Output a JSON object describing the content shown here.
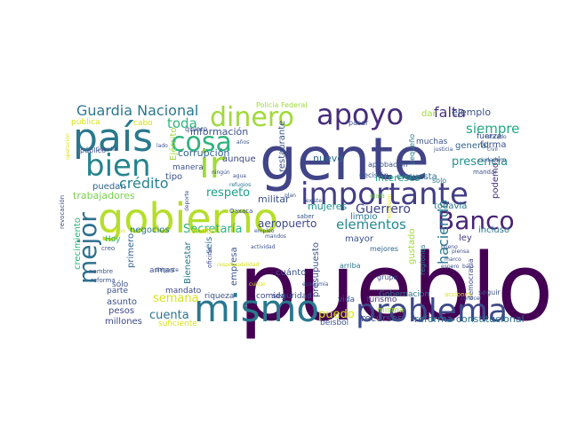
{
  "words": [
    {
      "text": "pueblo",
      "color": "#440154"
    },
    {
      "text": "gente",
      "color": "#414487"
    },
    {
      "text": "gobierno",
      "color": "#b5de2b"
    },
    {
      "text": "importante",
      "color": "#433e85"
    },
    {
      "text": "país",
      "color": "#2a788e"
    },
    {
      "text": "mismo",
      "color": "#2a788e"
    },
    {
      "text": "problema",
      "color": "#3e4989"
    },
    {
      "text": "apoyo",
      "color": "#472d7b"
    },
    {
      "text": "dinero",
      "color": "#a0da39"
    },
    {
      "text": "Banco",
      "color": "#482475"
    },
    {
      "text": "bien",
      "color": "#25848e"
    },
    {
      "text": "cosa",
      "color": "#2fb47c"
    },
    {
      "text": "mejor",
      "color": "#2d708e"
    },
    {
      "text": "ir",
      "color": "#a0da39"
    },
    {
      "text": "Guardia Nacional",
      "color": "#2a788e"
    },
    {
      "text": "falta",
      "color": "#46337e"
    },
    {
      "text": "ejemplo",
      "color": "#3b528b"
    },
    {
      "text": "siempre",
      "color": "#22a884"
    },
    {
      "text": "toda",
      "color": "#2fb47c"
    },
    {
      "text": "presencia",
      "color": "#21918c"
    },
    {
      "text": "haciendo",
      "color": "#2a788e"
    },
    {
      "text": "elementos",
      "color": "#238a8d"
    },
    {
      "text": "Secretaría",
      "color": "#2fb47c"
    },
    {
      "text": "respeto",
      "color": "#1f9e89"
    },
    {
      "text": "crédito",
      "color": "#25848e"
    },
    {
      "text": "Guerrero",
      "color": "#414487"
    },
    {
      "text": "intereses",
      "color": "#22a884"
    },
    {
      "text": "aeropuerto",
      "color": "#3e4989"
    },
    {
      "text": "cuenta",
      "color": "#2c728e"
    },
    {
      "text": "semana",
      "color": "#d8e219"
    },
    {
      "text": "puedo",
      "color": "#d8e219"
    },
    {
      "text": "recursos",
      "color": "#3b528b"
    },
    {
      "text": "reforma constitucional",
      "color": "#2c728e"
    },
    {
      "text": "información",
      "color": "#3b528b"
    },
    {
      "text": "corrupción",
      "color": "#32648e"
    },
    {
      "text": "trabajadores",
      "color": "#7ad151"
    },
    {
      "text": "mujeres",
      "color": "#21918c"
    },
    {
      "text": "militar",
      "color": "#3b528b"
    },
    {
      "text": "nuevo",
      "color": "#31688e"
    },
    {
      "text": "aunque",
      "color": "#3e4989"
    },
    {
      "text": "encuesta",
      "color": "#2c728e"
    },
    {
      "text": "primero",
      "color": "#32648e"
    },
    {
      "text": "mayor",
      "color": "#3b528b"
    },
    {
      "text": "ley",
      "color": "#443a83"
    },
    {
      "text": "forma",
      "color": "#3b528b"
    },
    {
      "text": "general",
      "color": "#32648e"
    },
    {
      "text": "podemos",
      "color": "#472d7b"
    },
    {
      "text": "incluso",
      "color": "#2a788e"
    },
    {
      "text": "todavía",
      "color": "#2a788e"
    },
    {
      "text": "limpio",
      "color": "#2a788e"
    },
    {
      "text": "negocios",
      "color": "#2a788e"
    },
    {
      "text": "crecimiento",
      "color": "#2fb47c"
    },
    {
      "text": "seis",
      "color": "#31688e"
    },
    {
      "text": "Bienestar",
      "color": "#2a788e"
    },
    {
      "text": "empresa",
      "color": "#3b528b"
    },
    {
      "text": "cuánto",
      "color": "#3b528b"
    },
    {
      "text": "presupuesto",
      "color": "#3b528b"
    },
    {
      "text": "restaurante",
      "color": "#3b528b"
    },
    {
      "text": "gustado",
      "color": "#a0da39"
    },
    {
      "text": "turismo",
      "color": "#46337e"
    },
    {
      "text": "vida",
      "color": "#3b528b"
    },
    {
      "text": "misma",
      "color": "#a0da39"
    },
    {
      "text": "Gobernación",
      "color": "#2c728e"
    },
    {
      "text": "beisbol",
      "color": "#3b528b"
    },
    {
      "text": "comida",
      "color": "#3e4989"
    },
    {
      "text": "seguridad",
      "color": "#3b528b"
    },
    {
      "text": "riqueza",
      "color": "#3b528b"
    },
    {
      "text": "mandato",
      "color": "#3e4989"
    },
    {
      "text": "asunto",
      "color": "#3b528b"
    },
    {
      "text": "pesos",
      "color": "#3e4989"
    },
    {
      "text": "millones",
      "color": "#3e4989"
    },
    {
      "text": "suficiente",
      "color": "#d8e219"
    },
    {
      "text": "parte",
      "color": "#3b528b"
    },
    {
      "text": "sólo",
      "color": "#3b528b"
    },
    {
      "text": "armas",
      "color": "#3b528b"
    },
    {
      "text": "puedan",
      "color": "#32648e"
    },
    {
      "text": "tipo",
      "color": "#3b528b"
    },
    {
      "text": "manera",
      "color": "#3b528b"
    },
    {
      "text": "Ejército",
      "color": "#a0da39"
    },
    {
      "text": "fondos",
      "color": "#d8e219"
    },
    {
      "text": "Hoy",
      "color": "#2fb47c"
    },
    {
      "text": "regiones",
      "color": "#2a788e"
    },
    {
      "text": "mejores",
      "color": "#31688e"
    },
    {
      "text": "grupo",
      "color": "#3e4989"
    },
    {
      "text": "arriba",
      "color": "#2a788e"
    },
    {
      "text": "democracia",
      "color": "#3e4989"
    },
    {
      "text": "seguir",
      "color": "#3b528b"
    },
    {
      "text": "muchas",
      "color": "#3b528b"
    },
    {
      "text": "aprobación",
      "color": "#3b528b"
    },
    {
      "text": "pequeño",
      "color": "#2a788e"
    },
    {
      "text": "decisión",
      "color": "#3b528b"
    },
    {
      "text": "solo",
      "color": "#2a788e"
    },
    {
      "text": "fuerza",
      "color": "#3b528b"
    },
    {
      "text": "dar",
      "color": "#a0da39"
    },
    {
      "text": "pasar",
      "color": "#3b528b"
    },
    {
      "text": "Policía Federal",
      "color": "#a0da39"
    },
    {
      "text": "quiero",
      "color": "#3b528b"
    },
    {
      "text": "pública",
      "color": "#d8e219"
    },
    {
      "text": "cabo",
      "color": "#d8e219"
    },
    {
      "text": "público",
      "color": "#3b528b"
    },
    {
      "text": "revocación",
      "color": "#3e4989"
    },
    {
      "text": "saber",
      "color": "#3b528b"
    },
    {
      "text": "ojalá",
      "color": "#7ad151"
    },
    {
      "text": "reforma",
      "color": "#3b528b"
    },
    {
      "text": "nombre",
      "color": "#3b528b"
    },
    {
      "text": "creo",
      "color": "#3b528b"
    },
    {
      "text": "Oaxaca",
      "color": "#3b528b"
    },
    {
      "text": "oficina",
      "color": "#3e4989"
    },
    {
      "text": "plan",
      "color": "#3b528b"
    },
    {
      "text": "existe",
      "color": "#3b528b"
    },
    {
      "text": "deporte",
      "color": "#3b528b"
    },
    {
      "text": "dirigente",
      "color": "#3b528b"
    },
    {
      "text": "refugios",
      "color": "#2a788e"
    },
    {
      "text": "agua",
      "color": "#3b528b"
    },
    {
      "text": "ningún",
      "color": "#3b528b"
    },
    {
      "text": "años",
      "color": "#3b528b"
    },
    {
      "text": "lado",
      "color": "#3b528b"
    },
    {
      "text": "Guardia",
      "color": "#3b528b"
    },
    {
      "text": "mandar",
      "color": "#3b528b"
    },
    {
      "text": "civil",
      "color": "#3b528b"
    },
    {
      "text": "retirado",
      "color": "#3b528b"
    },
    {
      "text": "ciudadano",
      "color": "#3b528b"
    },
    {
      "text": "justicia",
      "color": "#3b528b"
    },
    {
      "text": "bueno",
      "color": "#3b528b"
    },
    {
      "text": "bajo",
      "color": "#3b528b"
    },
    {
      "text": "conocer",
      "color": "#3b528b"
    },
    {
      "text": "acciones",
      "color": "#d8e219"
    },
    {
      "text": "operación",
      "color": "#d8e219"
    },
    {
      "text": "marco",
      "color": "#3b528b"
    },
    {
      "text": "espero",
      "color": "#3b528b"
    },
    {
      "text": "piensa",
      "color": "#3b528b"
    },
    {
      "text": "empleo",
      "color": "#3b528b"
    },
    {
      "text": "mandos",
      "color": "#3b528b"
    },
    {
      "text": "actividad",
      "color": "#3b528b"
    },
    {
      "text": "cuidar",
      "color": "#d8e219"
    },
    {
      "text": "responsabilidad",
      "color": "#d8e219"
    },
    {
      "text": "economía",
      "color": "#3b528b"
    },
    {
      "text": "tiempo",
      "color": "#d8e219"
    },
    {
      "text": "inversión",
      "color": "#d8e219"
    }
  ]
}
